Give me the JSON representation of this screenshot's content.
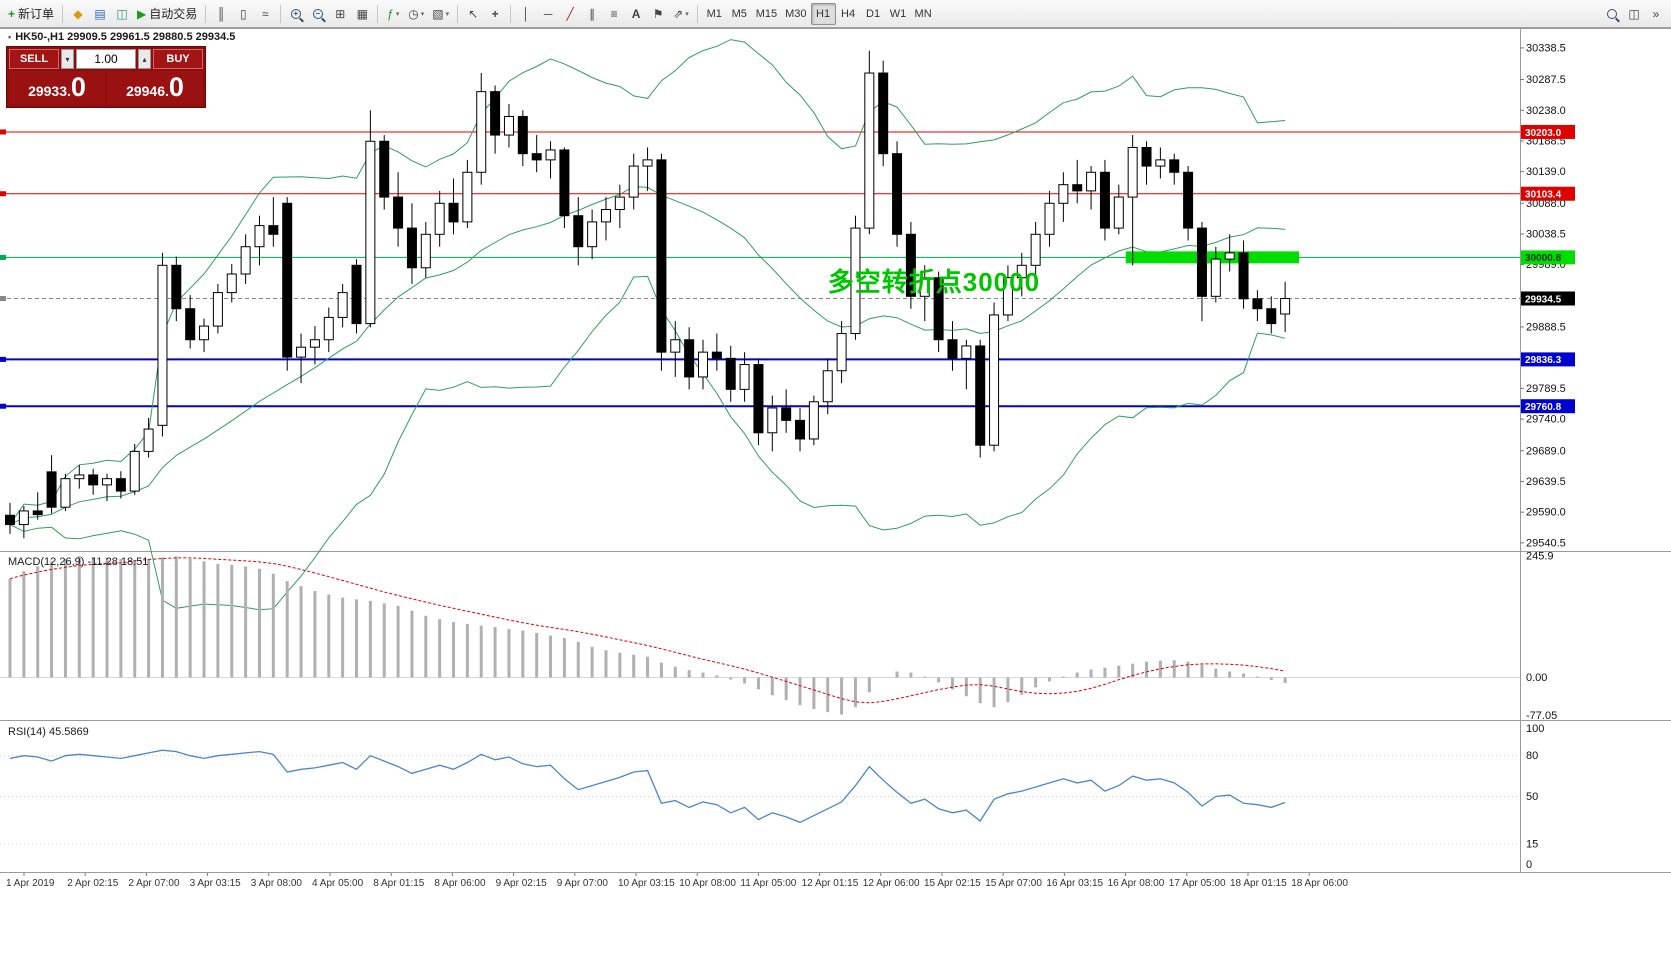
{
  "toolbar": {
    "new_order": "新订单",
    "autotrading": "自动交易",
    "timeframes": [
      "M1",
      "M5",
      "M15",
      "M30",
      "H1",
      "H4",
      "D1",
      "W1",
      "MN"
    ],
    "active_timeframe": "H1"
  },
  "icons": {
    "new-order": "+",
    "metaeditor": "◆",
    "market-watch": "▤",
    "data-window": "◫",
    "autotrading": "▶",
    "bars-chart": "║",
    "candles-chart": "▯",
    "line-chart": "≈",
    "tile-windows": "⊞",
    "cascade-windows": "▦",
    "indicators": "ƒ",
    "periods": "◷",
    "templates": "▧",
    "cursor": "↖",
    "crosshair": "+",
    "vline": "│",
    "hline": "─",
    "trendline": "╱",
    "channel": "∥",
    "fibonacci": "≡",
    "text-tool": "A",
    "label-tool": "⚑",
    "arrows-tool": "⇗",
    "dropdown": "▾",
    "spin-up": "▴",
    "spin-down": "▾",
    "overflow": "»",
    "chart-bullet": "▪"
  },
  "colors": {
    "background": "#ffffff",
    "candle_up": "#ffffff",
    "candle_down": "#000000",
    "candle_border": "#000000",
    "bollinger": "#2f9e5e",
    "macd_hist": "#b0b0b0",
    "macd_signal": "#dd0000",
    "rsi_line": "#4a86c8",
    "panel_red": "#8e0e0e",
    "highlight_green": "#00dd00",
    "annotation_green": "#00c400"
  },
  "chart_header": {
    "title": "HK50-,H1 29909.5 29961.5 29880.5 29934.5"
  },
  "trade_panel": {
    "sell_label": "SELL",
    "buy_label": "BUY",
    "volume": "1.00",
    "sell_price_main": "29933.",
    "sell_price_big": "0",
    "buy_price_main": "29946.",
    "buy_price_big": "0"
  },
  "chart_data": [
    {
      "type": "candlestick",
      "symbol": "HK50-",
      "period": "H1",
      "ohlc": [
        [
          29585,
          29605,
          29555,
          29570
        ],
        [
          29570,
          29600,
          29548,
          29592
        ],
        [
          29592,
          29622,
          29578,
          29586
        ],
        [
          29655,
          29682,
          29588,
          29598
        ],
        [
          29598,
          29652,
          29592,
          29644
        ],
        [
          29644,
          29666,
          29628,
          29650
        ],
        [
          29650,
          29660,
          29618,
          29634
        ],
        [
          29634,
          29652,
          29608,
          29644
        ],
        [
          29644,
          29656,
          29612,
          29624
        ],
        [
          29624,
          29700,
          29618,
          29688
        ],
        [
          29688,
          29742,
          29678,
          29724
        ],
        [
          29730,
          30008,
          29712,
          29988
        ],
        [
          29988,
          30002,
          29898,
          29918
        ],
        [
          29918,
          29940,
          29854,
          29868
        ],
        [
          29868,
          29902,
          29848,
          29890
        ],
        [
          29890,
          29958,
          29878,
          29944
        ],
        [
          29944,
          29990,
          29928,
          29974
        ],
        [
          29974,
          30038,
          29958,
          30018
        ],
        [
          30018,
          30068,
          29988,
          30052
        ],
        [
          30052,
          30098,
          30018,
          30038
        ],
        [
          30088,
          30098,
          29818,
          29840
        ],
        [
          29840,
          29878,
          29798,
          29856
        ],
        [
          29856,
          29890,
          29828,
          29868
        ],
        [
          29868,
          29920,
          29848,
          29904
        ],
        [
          29904,
          29958,
          29888,
          29944
        ],
        [
          29988,
          29998,
          29878,
          29894
        ],
        [
          29894,
          30238,
          29888,
          30188
        ],
        [
          30188,
          30198,
          30078,
          30098
        ],
        [
          30098,
          30138,
          30018,
          30048
        ],
        [
          30048,
          30088,
          29958,
          29984
        ],
        [
          29984,
          30058,
          29968,
          30038
        ],
        [
          30038,
          30108,
          30018,
          30088
        ],
        [
          30088,
          30128,
          30038,
          30058
        ],
        [
          30058,
          30158,
          30048,
          30138
        ],
        [
          30138,
          30298,
          30118,
          30268
        ],
        [
          30268,
          30278,
          30168,
          30198
        ],
        [
          30198,
          30248,
          30178,
          30228
        ],
        [
          30228,
          30238,
          30148,
          30168
        ],
        [
          30168,
          30198,
          30138,
          30158
        ],
        [
          30158,
          30188,
          30128,
          30174
        ],
        [
          30174,
          30178,
          30048,
          30068
        ],
        [
          30068,
          30098,
          29988,
          30018
        ],
        [
          30018,
          30078,
          29998,
          30058
        ],
        [
          30058,
          30098,
          30028,
          30078
        ],
        [
          30078,
          30118,
          30048,
          30098
        ],
        [
          30098,
          30168,
          30078,
          30148
        ],
        [
          30148,
          30178,
          30108,
          30158
        ],
        [
          30158,
          30168,
          29818,
          29848
        ],
        [
          29848,
          29898,
          29808,
          29868
        ],
        [
          29868,
          29888,
          29788,
          29808
        ],
        [
          29808,
          29868,
          29788,
          29848
        ],
        [
          29848,
          29878,
          29818,
          29838
        ],
        [
          29838,
          29858,
          29768,
          29788
        ],
        [
          29788,
          29848,
          29768,
          29828
        ],
        [
          29828,
          29838,
          29698,
          29718
        ],
        [
          29718,
          29778,
          29688,
          29758
        ],
        [
          29758,
          29788,
          29718,
          29738
        ],
        [
          29738,
          29758,
          29688,
          29708
        ],
        [
          29708,
          29778,
          29698,
          29768
        ],
        [
          29768,
          29838,
          29748,
          29818
        ],
        [
          29818,
          29898,
          29798,
          29878
        ],
        [
          29878,
          30068,
          29868,
          30048
        ],
        [
          30048,
          30334,
          30038,
          30298
        ],
        [
          30298,
          30318,
          30148,
          30168
        ],
        [
          30168,
          30188,
          30018,
          30038
        ],
        [
          30038,
          30058,
          29918,
          29938
        ],
        [
          29938,
          29988,
          29898,
          29968
        ],
        [
          29968,
          29978,
          29848,
          29868
        ],
        [
          29868,
          29898,
          29818,
          29838
        ],
        [
          29838,
          29868,
          29788,
          29858
        ],
        [
          29858,
          29868,
          29678,
          29698
        ],
        [
          29698,
          29928,
          29688,
          29908
        ],
        [
          29908,
          29988,
          29898,
          29968
        ],
        [
          29968,
          30008,
          29938,
          29988
        ],
        [
          29988,
          30058,
          29968,
          30038
        ],
        [
          30038,
          30108,
          30018,
          30088
        ],
        [
          30088,
          30138,
          30058,
          30118
        ],
        [
          30118,
          30158,
          30088,
          30108
        ],
        [
          30108,
          30148,
          30078,
          30138
        ],
        [
          30138,
          30158,
          30028,
          30048
        ],
        [
          30048,
          30118,
          30038,
          30098
        ],
        [
          30098,
          30198,
          29988,
          30178
        ],
        [
          30178,
          30188,
          30118,
          30148
        ],
        [
          30148,
          30178,
          30128,
          30158
        ],
        [
          30158,
          30168,
          30118,
          30138
        ],
        [
          30138,
          30148,
          30028,
          30048
        ],
        [
          30048,
          30058,
          29898,
          29938
        ],
        [
          29938,
          30018,
          29928,
          29998
        ],
        [
          29998,
          30038,
          29978,
          30008
        ],
        [
          30008,
          30028,
          29918,
          29934
        ],
        [
          29934,
          29948,
          29898,
          29918
        ],
        [
          29918,
          29938,
          29878,
          29894
        ],
        [
          29909.5,
          29961.5,
          29880.5,
          29934.5
        ]
      ],
      "overlays": {
        "bollinger": {
          "period": 20,
          "deviation": 2
        },
        "hlines": [
          {
            "price": 30203.0,
            "color": "#e00000",
            "width": 1,
            "style": "solid",
            "label": "30203.0",
            "label_bg": "#e00000",
            "label_fg": "#ffffff"
          },
          {
            "price": 30103.4,
            "color": "#e00000",
            "width": 1,
            "style": "solid",
            "label": "30103.4",
            "label_bg": "#e00000",
            "label_fg": "#ffffff"
          },
          {
            "price": 30000.8,
            "color": "#00a650",
            "width": 1,
            "style": "solid",
            "label": "30000.8",
            "label_bg": "#00dd00",
            "label_fg": "#003300"
          },
          {
            "price": 29934.5,
            "color": "#888888",
            "width": 1,
            "style": "dash",
            "label": "29934.5",
            "label_bg": "#000000",
            "label_fg": "#ffffff"
          },
          {
            "price": 29836.3,
            "color": "#0000d0",
            "width": 2,
            "style": "solid",
            "label": "29836.3",
            "label_bg": "#0000d0",
            "label_fg": "#ffffff"
          },
          {
            "price": 29760.8,
            "color": "#0000d0",
            "width": 2,
            "style": "solid",
            "label": "29760.8",
            "label_bg": "#0000d0",
            "label_fg": "#ffffff"
          }
        ],
        "highlight_bar": {
          "price": 30000.8,
          "bar_start": 80.5,
          "bar_end": 93,
          "thickness": 12,
          "color": "#00dd00"
        },
        "annotation": {
          "text": "多空转折点30000",
          "color": "#00c400",
          "bar": 59,
          "price": 29945
        }
      },
      "y_axis": {
        "min": 29529,
        "max": 30369,
        "ticks": [
          "30338.5",
          "30287.5",
          "30238.0",
          "30188.5",
          "30139.0",
          "30088.0",
          "30038.5",
          "29989.0",
          "29888.5",
          "29789.5",
          "29740.0",
          "29689.0",
          "29639.5",
          "29590.0",
          "29540.5"
        ]
      },
      "x_axis": {
        "labels": [
          "1 Apr 2019",
          "2 Apr 02:15",
          "2 Apr 07:00",
          "3 Apr 03:15",
          "3 Apr 08:00",
          "4 Apr 05:00",
          "8 Apr 01:15",
          "8 Apr 06:00",
          "9 Apr 02:15",
          "9 Apr 07:00",
          "10 Apr 03:15",
          "10 Apr 08:00",
          "11 Apr 05:00",
          "12 Apr 01:15",
          "12 Apr 06:00",
          "15 Apr 02:15",
          "15 Apr 07:00",
          "16 Apr 03:15",
          "16 Apr 08:00",
          "17 Apr 05:00",
          "18 Apr 01:15",
          "18 Apr 06:00"
        ]
      }
    },
    {
      "type": "macd",
      "label": "MACD(12,26,9) -11.28 18.51",
      "signal_period": 9,
      "scale": [
        "245.9",
        "0.00",
        "-77.05"
      ],
      "histogram": [
        200,
        215,
        225,
        235,
        240,
        245.9,
        244,
        242,
        240,
        238,
        240,
        243,
        245,
        240,
        235,
        230,
        228,
        225,
        220,
        210,
        195,
        185,
        175,
        168,
        162,
        158,
        155,
        150,
        145,
        135,
        125,
        118,
        112,
        108,
        105,
        102,
        98,
        95,
        90,
        85,
        80,
        72,
        62,
        55,
        50,
        46,
        42,
        30,
        22,
        15,
        10,
        4,
        -4,
        -12,
        -24,
        -36,
        -46,
        -56,
        -64,
        -70,
        -75,
        -60,
        -30,
        0,
        12,
        10,
        2,
        -10,
        -24,
        -38,
        -52,
        -60,
        -50,
        -35,
        -20,
        -8,
        2,
        10,
        16,
        20,
        24,
        28,
        32,
        34,
        35,
        32,
        26,
        18,
        12,
        8,
        2,
        -5,
        -11.28
      ]
    },
    {
      "type": "rsi",
      "label": "RSI(14) 45.5869",
      "scale": [
        "100",
        "80",
        "50",
        "15",
        "0"
      ],
      "levels": [
        80,
        50,
        15
      ],
      "values": [
        78,
        80,
        79,
        76,
        80,
        81,
        80,
        79,
        78,
        80,
        82,
        84,
        83,
        80,
        78,
        80,
        81,
        82,
        83,
        81,
        68,
        70,
        71,
        73,
        75,
        70,
        80,
        76,
        72,
        67,
        70,
        73,
        70,
        75,
        81,
        77,
        79,
        74,
        72,
        73,
        63,
        55,
        58,
        61,
        64,
        68,
        69,
        45,
        47,
        42,
        46,
        44,
        38,
        42,
        33,
        38,
        35,
        31,
        36,
        41,
        46,
        58,
        72,
        62,
        53,
        45,
        48,
        41,
        38,
        40,
        32,
        48,
        52,
        54,
        57,
        60,
        63,
        60,
        62,
        54,
        58,
        65,
        62,
        63,
        60,
        53,
        43,
        50,
        51,
        45,
        44,
        42,
        45.5869
      ]
    }
  ]
}
